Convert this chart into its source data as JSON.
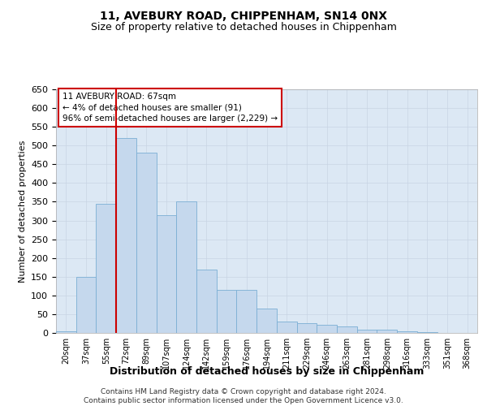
{
  "title1": "11, AVEBURY ROAD, CHIPPENHAM, SN14 0NX",
  "title2": "Size of property relative to detached houses in Chippenham",
  "xlabel": "Distribution of detached houses by size in Chippenham",
  "ylabel": "Number of detached properties",
  "categories": [
    "20sqm",
    "37sqm",
    "55sqm",
    "72sqm",
    "89sqm",
    "107sqm",
    "124sqm",
    "142sqm",
    "159sqm",
    "176sqm",
    "194sqm",
    "211sqm",
    "229sqm",
    "246sqm",
    "263sqm",
    "281sqm",
    "298sqm",
    "316sqm",
    "333sqm",
    "351sqm",
    "368sqm"
  ],
  "values": [
    5,
    150,
    345,
    520,
    480,
    315,
    350,
    170,
    115,
    115,
    65,
    30,
    25,
    22,
    18,
    8,
    8,
    5,
    2,
    1,
    1
  ],
  "bar_color": "#c5d8ed",
  "bar_edge_color": "#7bafd4",
  "annotation_label": "11 AVEBURY ROAD: 67sqm",
  "annotation_line1": "← 4% of detached houses are smaller (91)",
  "annotation_line2": "96% of semi-detached houses are larger (2,229) →",
  "annotation_box_facecolor": "#ffffff",
  "annotation_box_edgecolor": "#cc0000",
  "vline_color": "#cc0000",
  "vline_x": 2.5,
  "grid_color": "#c8d4e4",
  "background_color": "#dce8f4",
  "footer1": "Contains HM Land Registry data © Crown copyright and database right 2024.",
  "footer2": "Contains public sector information licensed under the Open Government Licence v3.0.",
  "ylim": [
    0,
    650
  ],
  "yticks": [
    0,
    50,
    100,
    150,
    200,
    250,
    300,
    350,
    400,
    450,
    500,
    550,
    600,
    650
  ]
}
